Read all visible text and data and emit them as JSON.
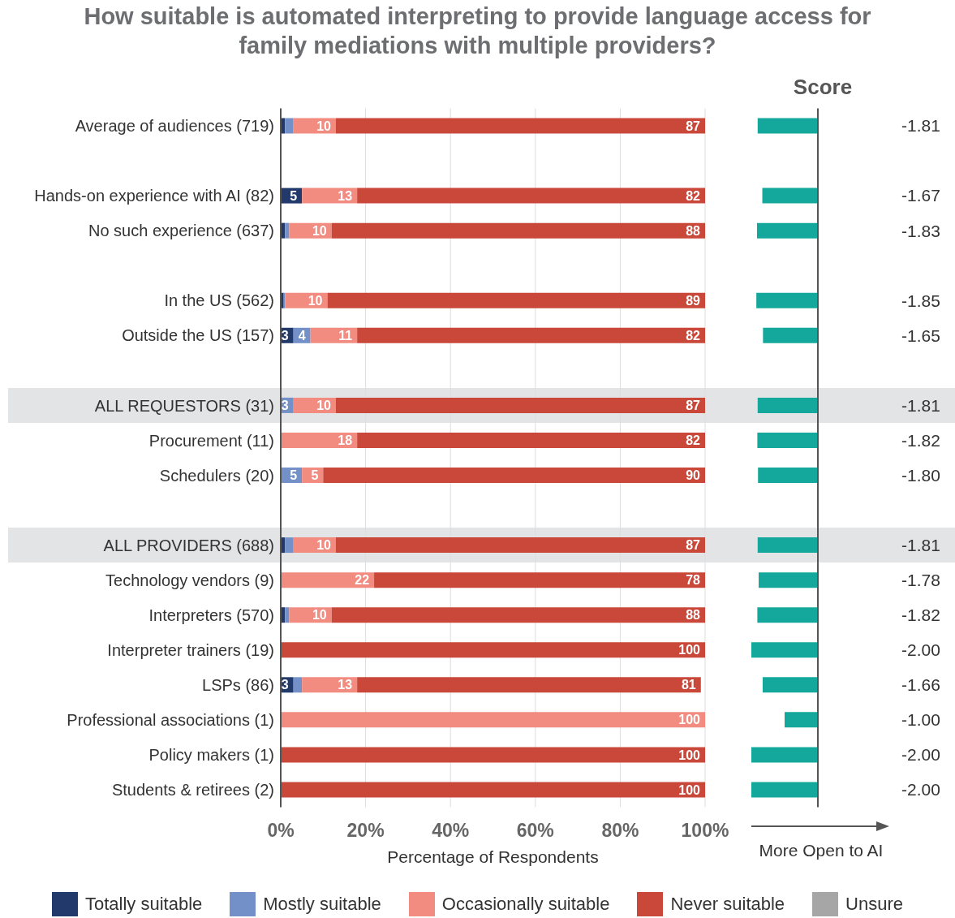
{
  "chart_data": [
    {
      "type": "bar",
      "orientation": "horizontal",
      "stacked": true,
      "title": "How suitable is automated interpreting to provide language access for family mediations with multiple providers?",
      "xlabel": "Percentage of Respondents",
      "categories": [
        "Average of audiences (719)",
        null,
        "Hands-on experience with AI (82)",
        "No such experience (637)",
        null,
        "In the US (562)",
        "Outside the US (157)",
        null,
        "ALL REQUESTORS (31)",
        "Procurement (11)",
        "Schedulers (20)",
        null,
        "ALL PROVIDERS (688)",
        "Technology vendors (9)",
        "Interpreters (570)",
        "Interpreter trainers (19)",
        "LSPs (86)",
        "Professional associations (1)",
        "Policy makers (1)",
        "Students & retirees (2)"
      ],
      "series": [
        {
          "name": "Totally suitable",
          "color": "#213a6b",
          "values": [
            1,
            null,
            5,
            1,
            null,
            0.7,
            3,
            null,
            0,
            0,
            0,
            null,
            1,
            0,
            1,
            0,
            3,
            0,
            0,
            0
          ],
          "value_labels": [
            null,
            null,
            "5",
            null,
            null,
            null,
            "3",
            null,
            null,
            null,
            null,
            null,
            null,
            null,
            null,
            null,
            "3",
            null,
            null,
            null
          ]
        },
        {
          "name": "Mostly suitable",
          "color": "#7391c8",
          "values": [
            2,
            null,
            0,
            1,
            null,
            0.3,
            4,
            null,
            3,
            0,
            5,
            null,
            2,
            0,
            1,
            0,
            2,
            0,
            0,
            0
          ],
          "value_labels": [
            null,
            null,
            null,
            null,
            null,
            null,
            "4",
            null,
            "3",
            null,
            "5",
            null,
            null,
            null,
            null,
            null,
            null,
            null,
            null,
            null
          ]
        },
        {
          "name": "Occasionally suitable",
          "color": "#f28b80",
          "values": [
            10,
            null,
            13,
            10,
            null,
            10,
            11,
            null,
            10,
            18,
            5,
            null,
            10,
            22,
            10,
            0,
            13,
            100,
            0,
            0
          ],
          "value_labels": [
            "10",
            null,
            "13",
            "10",
            null,
            "10",
            "11",
            null,
            "10",
            "18",
            "5",
            null,
            "10",
            "22",
            "10",
            null,
            "13",
            "100",
            null,
            null
          ]
        },
        {
          "name": "Never suitable",
          "color": "#c9483a",
          "values": [
            87,
            null,
            82,
            88,
            null,
            89,
            82,
            null,
            87,
            82,
            90,
            null,
            87,
            78,
            88,
            100,
            81,
            0,
            100,
            100
          ],
          "value_labels": [
            "87",
            null,
            "82",
            "88",
            null,
            "89",
            "82",
            null,
            "87",
            "82",
            "90",
            null,
            "87",
            "78",
            "88",
            "100",
            "81",
            null,
            "100",
            "100"
          ]
        },
        {
          "name": "Unsure",
          "color": "#a6a6a6",
          "values": [
            0,
            null,
            0,
            0,
            null,
            0,
            0,
            null,
            0,
            0,
            0,
            null,
            0,
            0,
            0,
            0,
            0,
            0,
            0,
            0
          ]
        }
      ],
      "xlim": [
        0,
        100
      ],
      "xticks": [
        {
          "value": 0,
          "label": "0%"
        },
        {
          "value": 20,
          "label": "20%"
        },
        {
          "value": 40,
          "label": "40%"
        },
        {
          "value": 60,
          "label": "60%"
        },
        {
          "value": 80,
          "label": "80%"
        },
        {
          "value": 100,
          "label": "100%"
        }
      ],
      "grid": "x",
      "legend": "bottom",
      "bands": [
        {
          "axis": "y",
          "from": "ALL REQUESTORS (31)",
          "to": "ALL REQUESTORS (31)",
          "color": "#e3e4e5"
        },
        {
          "axis": "y",
          "from": "ALL PROVIDERS (688)",
          "to": "ALL PROVIDERS (688)",
          "color": "#e3e4e5"
        }
      ]
    },
    {
      "type": "bar",
      "orientation": "horizontal",
      "title": "Score",
      "xlabel": "More Open to AI",
      "categories": [
        null,
        null,
        null,
        null,
        null,
        null,
        null,
        null,
        null,
        null,
        null,
        null,
        null,
        null,
        null,
        null,
        null,
        null,
        null,
        null
      ],
      "values": [
        -1.81,
        null,
        -1.67,
        -1.83,
        null,
        -1.85,
        -1.65,
        null,
        -1.81,
        -1.82,
        -1.8,
        null,
        -1.81,
        -1.78,
        -1.82,
        -2.0,
        -1.66,
        -1.0,
        -2.0,
        -2.0
      ],
      "value_labels": [
        "-1.81",
        null,
        "-1.67",
        "-1.83",
        null,
        "-1.85",
        "-1.65",
        null,
        "-1.81",
        "-1.82",
        "-1.80",
        null,
        "-1.81",
        "-1.78",
        "-1.82",
        "-2.00",
        "-1.66",
        "-1.00",
        "-2.00",
        "-2.00"
      ],
      "color": "#14a89c"
    }
  ]
}
